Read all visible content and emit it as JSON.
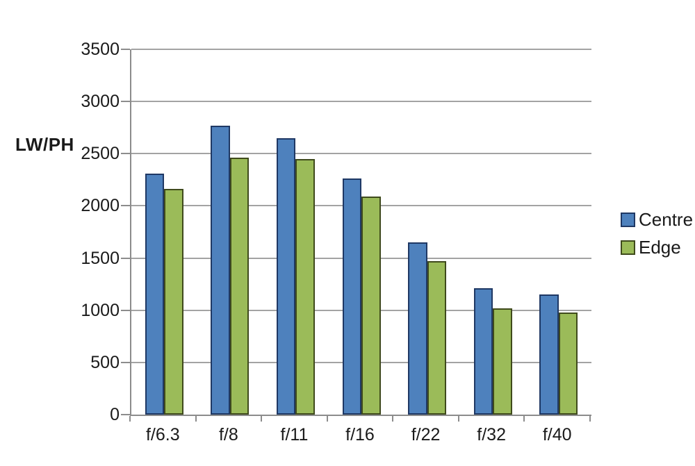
{
  "chart_data": {
    "type": "bar",
    "title": "",
    "ylabel": "LW/PH",
    "xlabel": "",
    "categories": [
      "f/6.3",
      "f/8",
      "f/11",
      "f/16",
      "f/22",
      "f/32",
      "f/40"
    ],
    "series": [
      {
        "name": "Centre",
        "color": "#4e81bd",
        "border_color": "#1f3864",
        "values": [
          2310,
          2770,
          2650,
          2260,
          1650,
          1210,
          1150
        ]
      },
      {
        "name": "Edge",
        "color": "#9bbb59",
        "border_color": "#3f4a1c",
        "values": [
          2160,
          2460,
          2450,
          2090,
          1470,
          1020,
          980
        ]
      }
    ],
    "ylim": [
      0,
      3500
    ],
    "yticks": [
      0,
      500,
      1000,
      1500,
      2000,
      2500,
      3000,
      3500
    ],
    "grid": true,
    "legend_position": "right",
    "grid_color": "#a3a3a3",
    "axis_color": "#8c8c8c",
    "text_color": "#1a1a1a"
  }
}
